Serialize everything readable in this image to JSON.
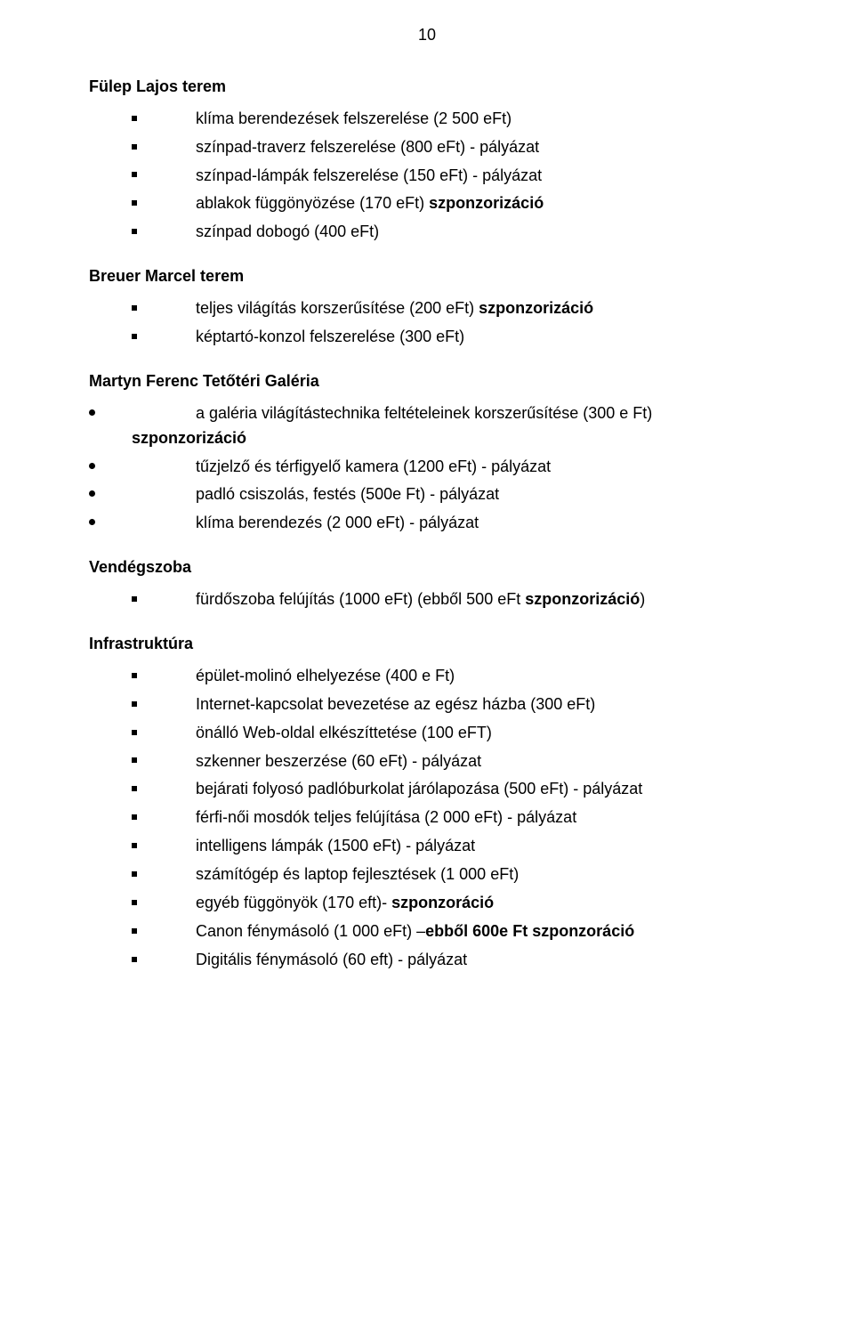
{
  "page_number": "10",
  "sections": {
    "fulep": {
      "title": "Fülep Lajos terem",
      "items": [
        {
          "text": "klíma berendezések felszerelése (2 500 eFt)"
        },
        {
          "text": "színpad-traverz felszerelése (800 eFt) - pályázat"
        },
        {
          "text": "színpad-lámpák felszerelése (150 eFt) - pályázat"
        },
        {
          "text_a": "ablakok függönyözése (170 eFt) ",
          "text_b": "szponzorizáció"
        },
        {
          "text": "színpad dobogó (400 eFt)"
        }
      ]
    },
    "breuer": {
      "title": "Breuer Marcel terem",
      "items": [
        {
          "text_a": "teljes világítás korszerűsítése (200 eFt) ",
          "text_b": "szponzorizáció"
        },
        {
          "text": "képtartó-konzol felszerelése (300 eFt)"
        }
      ]
    },
    "martyn": {
      "title": "Martyn Ferenc Tetőtéri Galéria",
      "items": [
        {
          "line1": "a galéria világítástechnika feltételeinek korszerűsítése (300 e Ft)",
          "line2_bold": "szponzorizáció"
        },
        {
          "text": "tűzjelző és térfigyelő kamera (1200 eFt) - pályázat"
        },
        {
          "text": "padló csiszolás, festés (500e Ft) - pályázat"
        },
        {
          "text": "klíma berendezés (2 000 eFt) - pályázat"
        }
      ]
    },
    "vendegszoba": {
      "title": "Vendégszoba",
      "items": [
        {
          "text_a": "fürdőszoba felújítás (1000 eFt) (ebből 500 eFt ",
          "text_b": "szponzorizáció",
          "text_c": ")"
        }
      ]
    },
    "infra": {
      "title": "Infrastruktúra",
      "items": [
        {
          "text": "épület-molinó elhelyezése (400 e Ft)"
        },
        {
          "text": "Internet-kapcsolat bevezetése az egész házba (300 eFt)"
        },
        {
          "text": "önálló Web-oldal elkészíttetése (100 eFT)"
        },
        {
          "text": "szkenner beszerzése (60 eFt) - pályázat"
        },
        {
          "text": "bejárati folyosó padlóburkolat járólapozása (500 eFt) - pályázat"
        },
        {
          "text": "férfi-női mosdók teljes felújítása (2 000 eFt) - pályázat"
        },
        {
          "text": "intelligens lámpák (1500 eFt) - pályázat"
        },
        {
          "text": "számítógép és laptop fejlesztések (1 000 eFt)"
        },
        {
          "text_a": "egyéb függönyök  (170 eft)- ",
          "text_b": "szponzoráció"
        },
        {
          "text_a": "Canon fénymásoló (1 000 eFt) –",
          "text_b": "ebből 600e Ft szponzoráció"
        },
        {
          "text": "Digitális fénymásoló (60 eft) - pályázat"
        }
      ]
    }
  }
}
